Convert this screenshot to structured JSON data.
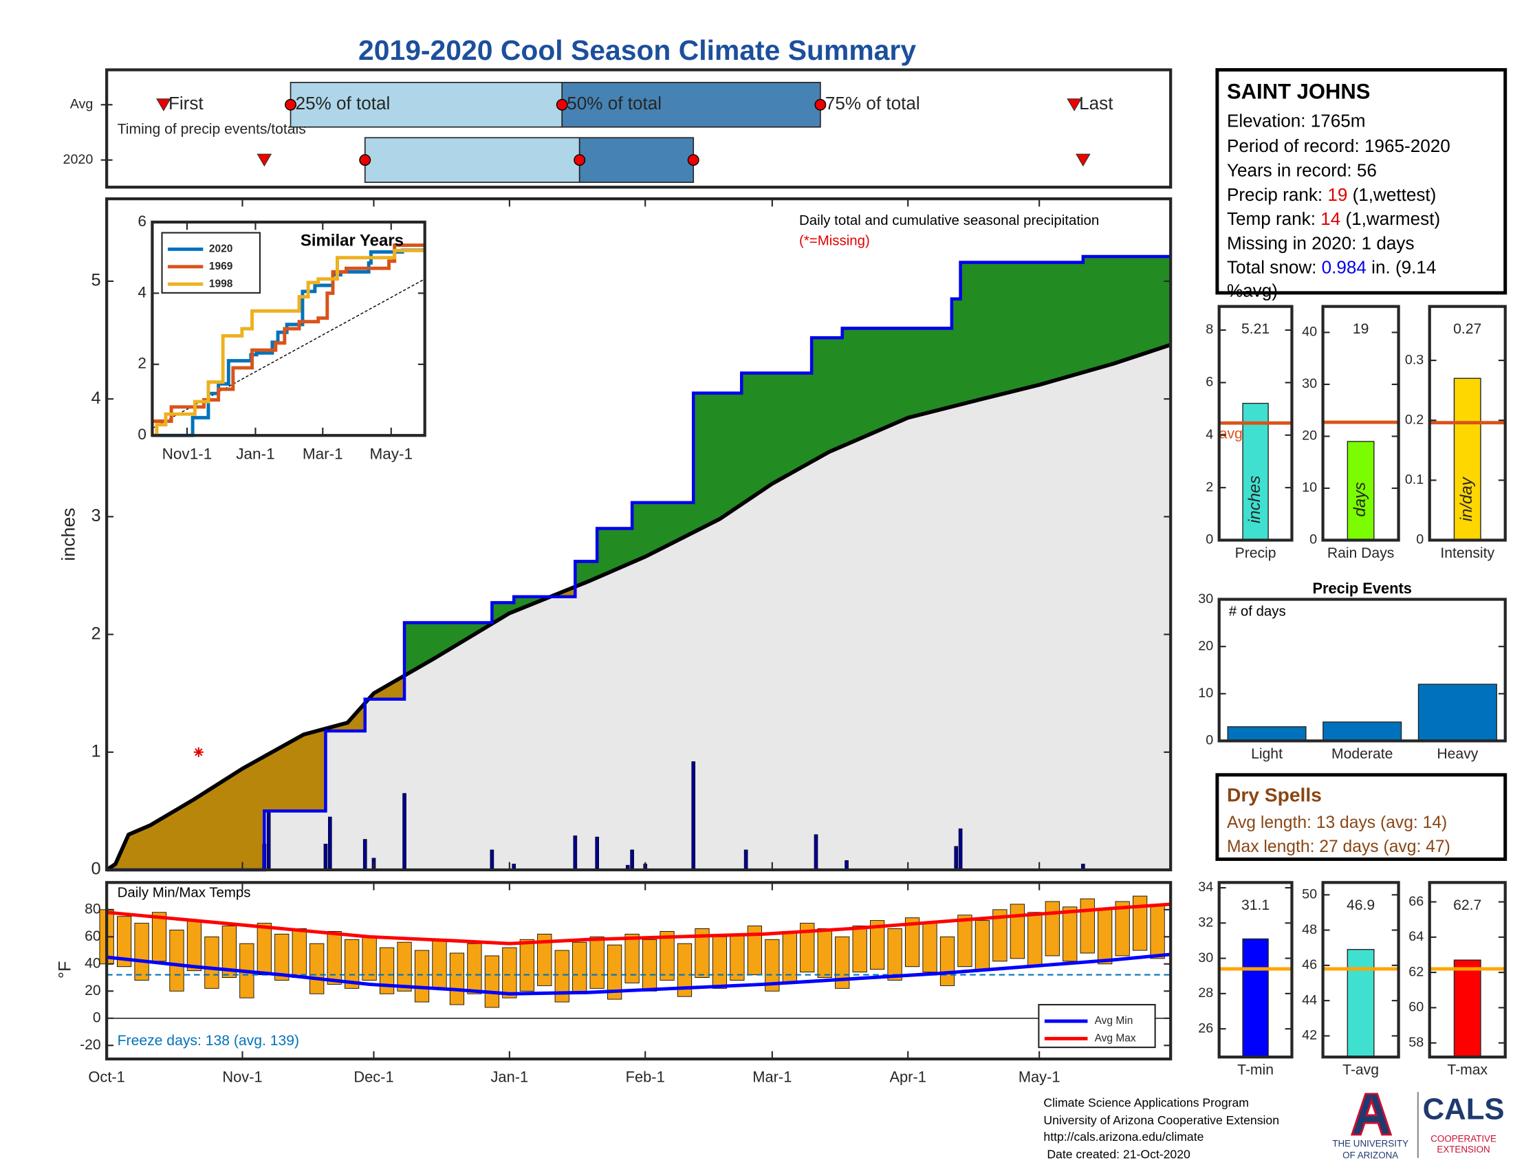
{
  "title": "2019-2020 Cool Season Climate Summary",
  "chart_data": [
    {
      "type": "timing",
      "subtitle": "Timing of precip events/totals",
      "rows": [
        "Avg",
        "2020"
      ],
      "xlim": [
        0,
        243
      ],
      "first": [
        13,
        36
      ],
      "q25": [
        42,
        59
      ],
      "q50": [
        104,
        108
      ],
      "q75": [
        163,
        134
      ],
      "last": [
        221,
        223
      ],
      "labels": {
        "first": "First",
        "q25": "25% of total",
        "q50": "50% of total",
        "q75": "75% of total",
        "last": "Last"
      },
      "light_color": "#aed6e8",
      "dark_color": "#4682b4",
      "marker_color": "#ee0000"
    },
    {
      "type": "area",
      "title": "Daily total and cumulative seasonal precipitation",
      "subtitle": "(*=Missing)",
      "ylabel": "inches",
      "xlim": [
        0,
        243
      ],
      "ylim": [
        0,
        5.7
      ],
      "yticks": [
        0,
        1,
        2,
        3,
        4,
        5
      ],
      "xticks": [
        0,
        31,
        61,
        92,
        123,
        152,
        183,
        213
      ],
      "cumulative_2020": {
        "color": "#0000ee",
        "x": [
          0,
          36,
          50,
          59,
          68,
          88,
          93,
          107,
          112,
          120,
          134,
          145,
          161,
          168,
          193,
          195,
          223
        ],
        "values": [
          0,
          0.5,
          1.18,
          1.45,
          2.1,
          2.27,
          2.32,
          2.62,
          2.9,
          3.12,
          4.05,
          4.22,
          4.52,
          4.6,
          4.85,
          5.16,
          5.21
        ]
      },
      "cumulative_avg": {
        "color": "#000000",
        "x": [
          0,
          2,
          5,
          10,
          20,
          31,
          45,
          55,
          61,
          75,
          92,
          110,
          123,
          140,
          152,
          165,
          183,
          200,
          213,
          230,
          243
        ],
        "values": [
          0,
          0.05,
          0.3,
          0.38,
          0.6,
          0.86,
          1.15,
          1.25,
          1.5,
          1.8,
          2.18,
          2.45,
          2.66,
          2.98,
          3.28,
          3.55,
          3.84,
          4.0,
          4.12,
          4.3,
          4.46
        ]
      },
      "daily": {
        "color": "#00008b",
        "x": [
          36,
          37,
          50,
          51,
          59,
          61,
          68,
          88,
          93,
          107,
          112,
          119,
          120,
          123,
          134,
          146,
          162,
          169,
          194,
          195,
          223
        ],
        "values": [
          0.22,
          0.5,
          0.22,
          0.45,
          0.26,
          0.1,
          0.65,
          0.17,
          0.05,
          0.29,
          0.28,
          0.04,
          0.17,
          0.05,
          0.92,
          0.17,
          0.3,
          0.08,
          0.2,
          0.35,
          0.05
        ]
      },
      "missing": {
        "color": "#e00000",
        "x": [
          21
        ],
        "values": [
          1.0
        ]
      },
      "above_avg_color": "#228b22",
      "below_avg_color": "#b8860b",
      "avg_fill_color": "#e8e8e8"
    },
    {
      "type": "line",
      "title": "Similar Years",
      "xlim": [
        0,
        243
      ],
      "ylim": [
        0,
        6
      ],
      "yticks": [
        0,
        2,
        4,
        6
      ],
      "xticks": [
        {
          "value": 31,
          "label": "Nov1-1"
        },
        {
          "value": 92,
          "label": "Jan-1"
        },
        {
          "value": 152,
          "label": "Mar-1"
        },
        {
          "value": 213,
          "label": "May-1"
        }
      ],
      "legend": "upper left",
      "step": true,
      "series": [
        {
          "name": "2020",
          "color": "#0072bd",
          "x": [
            0,
            36,
            50,
            59,
            68,
            88,
            93,
            107,
            112,
            120,
            134,
            145,
            161,
            168,
            193,
            195,
            223
          ],
          "values": [
            0,
            0.5,
            1.18,
            1.45,
            2.1,
            2.27,
            2.32,
            2.62,
            2.9,
            3.12,
            4.05,
            4.22,
            4.52,
            4.6,
            4.85,
            5.16,
            5.21
          ]
        },
        {
          "name": "1969",
          "color": "#d95319",
          "x": [
            0,
            17,
            46,
            59,
            72,
            89,
            110,
            118,
            131,
            148,
            156,
            161,
            173,
            211,
            216
          ],
          "values": [
            0.4,
            0.8,
            1.0,
            1.3,
            1.9,
            2.4,
            2.6,
            3.0,
            3.2,
            3.3,
            4.0,
            4.6,
            4.7,
            4.9,
            5.35
          ]
        },
        {
          "name": "1998",
          "color": "#edb120",
          "x": [
            0,
            4,
            12,
            38,
            50,
            63,
            80,
            89,
            131,
            139,
            148,
            165,
            216
          ],
          "values": [
            0,
            0.3,
            0.6,
            0.95,
            1.5,
            2.8,
            3.0,
            3.5,
            3.9,
            4.3,
            4.4,
            5.0,
            5.2
          ]
        }
      ],
      "average": {
        "color": "#000000",
        "x": [
          0,
          243
        ],
        "values": [
          0.2,
          4.4
        ]
      }
    },
    {
      "type": "range",
      "title": "Daily Min/Max Temps",
      "ylabel": "°F",
      "annotation": "Freeze days: 138 (avg. 139)",
      "xlim": [
        0,
        243
      ],
      "ylim": [
        -30,
        100
      ],
      "yticks": [
        -20,
        0,
        20,
        40,
        60,
        80
      ],
      "xticks": [
        {
          "value": 0,
          "label": "Oct-1"
        },
        {
          "value": 31,
          "label": "Nov-1"
        },
        {
          "value": 61,
          "label": "Dec-1"
        },
        {
          "value": 92,
          "label": "Jan-1"
        },
        {
          "value": 123,
          "label": "Feb-1"
        },
        {
          "value": 152,
          "label": "Mar-1"
        },
        {
          "value": 183,
          "label": "Apr-1"
        },
        {
          "value": 213,
          "label": "May-1"
        }
      ],
      "freeze_line": 32,
      "freeze_color": "#0072bd",
      "legend": "lower right",
      "daily": {
        "color": "#f5a312",
        "x": [
          0,
          4,
          8,
          12,
          16,
          20,
          24,
          28,
          32,
          36,
          40,
          44,
          48,
          52,
          56,
          60,
          64,
          68,
          72,
          76,
          80,
          84,
          88,
          92,
          96,
          100,
          104,
          108,
          112,
          116,
          120,
          124,
          128,
          132,
          136,
          140,
          144,
          148,
          152,
          156,
          160,
          164,
          168,
          172,
          176,
          180,
          184,
          188,
          192,
          196,
          200,
          204,
          208,
          212,
          216,
          220,
          224,
          228,
          232,
          236,
          240
        ],
        "max": [
          80,
          75,
          70,
          78,
          65,
          72,
          60,
          68,
          55,
          70,
          62,
          66,
          55,
          64,
          58,
          60,
          52,
          56,
          50,
          58,
          48,
          55,
          46,
          52,
          58,
          62,
          50,
          56,
          60,
          54,
          62,
          58,
          64,
          55,
          66,
          60,
          62,
          68,
          58,
          64,
          70,
          66,
          60,
          68,
          72,
          66,
          74,
          70,
          60,
          76,
          72,
          80,
          84,
          78,
          86,
          82,
          88,
          80,
          86,
          90,
          84
        ],
        "min": [
          40,
          38,
          28,
          42,
          20,
          35,
          22,
          30,
          15,
          32,
          28,
          30,
          18,
          25,
          22,
          28,
          18,
          20,
          12,
          22,
          10,
          18,
          8,
          15,
          20,
          24,
          12,
          18,
          22,
          14,
          26,
          20,
          28,
          16,
          30,
          22,
          28,
          32,
          20,
          26,
          34,
          30,
          22,
          34,
          36,
          28,
          38,
          34,
          24,
          38,
          35,
          42,
          44,
          38,
          46,
          42,
          48,
          40,
          46,
          50,
          44
        ]
      },
      "series": [
        {
          "name": "Avg Min",
          "color": "#0000ff",
          "x": [
            0,
            20,
            40,
            60,
            80,
            92,
            110,
            130,
            150,
            170,
            190,
            210,
            230,
            243
          ],
          "values": [
            45,
            38,
            32,
            25,
            21,
            18,
            19,
            22,
            25,
            29,
            33,
            38,
            43,
            47
          ]
        },
        {
          "name": "Avg Max",
          "color": "#ff0000",
          "x": [
            0,
            20,
            40,
            60,
            80,
            92,
            110,
            130,
            150,
            170,
            190,
            210,
            230,
            243
          ],
          "values": [
            78,
            72,
            66,
            60,
            57,
            55,
            58,
            60,
            62,
            66,
            71,
            76,
            81,
            84
          ]
        }
      ]
    },
    {
      "type": "bar",
      "categories": [
        "Precip"
      ],
      "values": [
        5.21
      ],
      "color": "#40e0d0",
      "avg": 4.46,
      "avg_color": "#d95319",
      "avg_label": "avg",
      "unit_label": "inches",
      "ylim": [
        0,
        8.9
      ],
      "yticks": [
        0,
        2,
        4,
        6,
        8
      ]
    },
    {
      "type": "bar",
      "categories": [
        "Rain Days"
      ],
      "values": [
        19
      ],
      "color": "#7cfc00",
      "avg": 22.7,
      "avg_color": "#d95319",
      "unit_label": "days",
      "ylim": [
        0,
        45
      ],
      "yticks": [
        0,
        10,
        20,
        30,
        40
      ]
    },
    {
      "type": "bar",
      "categories": [
        "Intensity"
      ],
      "values": [
        0.27
      ],
      "color": "#ffd700",
      "avg": 0.196,
      "avg_color": "#d95319",
      "unit_label": "in/day",
      "ylim": [
        0,
        0.39
      ],
      "yticks": [
        0,
        0.1,
        0.2,
        0.3
      ]
    },
    {
      "type": "bar",
      "title": "Precip Events",
      "ylabel": "# of days",
      "categories": [
        "Light",
        "Moderate",
        "Heavy"
      ],
      "values": [
        3,
        4,
        12
      ],
      "color": "#0072bd",
      "ylim": [
        0,
        30
      ],
      "yticks": [
        0,
        10,
        20,
        30
      ]
    },
    {
      "type": "bar",
      "categories": [
        "T-min"
      ],
      "values": [
        31.1
      ],
      "color": "#0000ff",
      "avg": 29.4,
      "avg_color": "#ffa500",
      "ylim": [
        24.4,
        34.3
      ],
      "yticks": [
        26,
        28,
        30,
        32,
        34
      ]
    },
    {
      "type": "bar",
      "categories": [
        "T-avg"
      ],
      "values": [
        46.9
      ],
      "color": "#40e0d0",
      "avg": 45.8,
      "avg_color": "#ffa500",
      "ylim": [
        40.8,
        50.7
      ],
      "yticks": [
        42,
        44,
        46,
        48,
        50
      ]
    },
    {
      "type": "bar",
      "categories": [
        "T-max"
      ],
      "values": [
        62.7
      ],
      "color": "#ff0000",
      "avg": 62.2,
      "avg_color": "#ffa500",
      "ylim": [
        57.2,
        67.1
      ],
      "yticks": [
        58,
        60,
        62,
        64,
        66
      ]
    }
  ],
  "info": {
    "station": "SAINT JOHNS",
    "elevation": "Elevation: 1765m",
    "period": "Period of record: 1965-2020",
    "years": "Years in record: 56",
    "precip_rank": [
      "Precip rank: ",
      "19",
      " (1,wettest)"
    ],
    "temp_rank": [
      "Temp rank: ",
      "14",
      " (1,warmest)"
    ],
    "missing": "Missing in 2020: 1 days",
    "snow": [
      "Total snow: ",
      "0.984",
      " in. (9.14",
      "%avg)"
    ]
  },
  "dry_spells": {
    "title": "Dry Spells",
    "avg": "Avg length: 13 days (avg: 14)",
    "max": "Max length: 27 days (avg: 47)"
  },
  "footer": [
    "Climate Science Applications Program",
    "University of Arizona Cooperative Extension",
    "http://cals.arizona.edu/climate",
    " Date created: 21-Oct-2020"
  ],
  "logos": {
    "ua": [
      "THE UNIVERSITY",
      "OF ARIZONA"
    ],
    "cals": "CALS",
    "extension": [
      "COOPERATIVE",
      "EXTENSION"
    ]
  }
}
